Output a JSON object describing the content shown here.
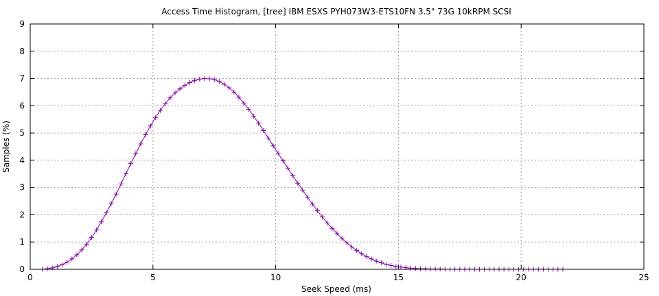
{
  "chart_data": {
    "type": "line",
    "title": "Access Time Histogram, [tree] IBM ESXS PYH073W3-ETS10FN 3.5\" 73G 10kRPM SCSI",
    "xlabel": "Seek Speed (ms)",
    "ylabel": "Samples (%)",
    "xlim": [
      0,
      25
    ],
    "ylim": [
      0,
      9
    ],
    "xticks": [
      0,
      5,
      10,
      15,
      20,
      25
    ],
    "yticks": [
      0,
      1,
      2,
      3,
      4,
      5,
      6,
      7,
      8,
      9
    ],
    "grid": true,
    "marker": "plus",
    "color": "#8b00b6",
    "series": [
      {
        "x": [
          0.5,
          0.7,
          0.9,
          1.1,
          1.3,
          1.5,
          1.7,
          1.9,
          2.1,
          2.3,
          2.5,
          2.7,
          2.9,
          3.1,
          3.3,
          3.5,
          3.7,
          3.9,
          4.1,
          4.3,
          4.5,
          4.7,
          4.9,
          5.1,
          5.3,
          5.5,
          5.7,
          5.9,
          6.1,
          6.3,
          6.5,
          6.7,
          6.9,
          7.1,
          7.3,
          7.5,
          7.7,
          7.9,
          8.1,
          8.3,
          8.5,
          8.7,
          8.9,
          9.1,
          9.3,
          9.5,
          9.7,
          9.9,
          10.1,
          10.3,
          10.5,
          10.7,
          10.9,
          11.1,
          11.3,
          11.5,
          11.7,
          11.9,
          12.1,
          12.3,
          12.5,
          12.7,
          12.9,
          13.1,
          13.3,
          13.5,
          13.7,
          13.9,
          14.1,
          14.3,
          14.5,
          14.7,
          14.9,
          15.1,
          15.3,
          15.5,
          15.7,
          15.9,
          16.1,
          16.3,
          16.5,
          16.7,
          16.9,
          17.1,
          17.3,
          17.5,
          17.7,
          17.9,
          18.1,
          18.3,
          18.5,
          18.7,
          18.9,
          19.1,
          19.3,
          19.5,
          19.7,
          19.9,
          20.1,
          20.3,
          20.5,
          20.7,
          20.9,
          21.1,
          21.3,
          21.5,
          21.7
        ],
        "y": [
          0.0,
          0.02,
          0.05,
          0.1,
          0.17,
          0.26,
          0.38,
          0.53,
          0.71,
          0.92,
          1.17,
          1.44,
          1.74,
          2.07,
          2.41,
          2.76,
          3.13,
          3.51,
          3.88,
          4.24,
          4.6,
          4.94,
          5.26,
          5.56,
          5.83,
          6.07,
          6.29,
          6.47,
          6.62,
          6.75,
          6.85,
          6.93,
          6.98,
          7.0,
          6.99,
          6.96,
          6.89,
          6.79,
          6.66,
          6.5,
          6.31,
          6.1,
          5.87,
          5.62,
          5.36,
          5.09,
          4.81,
          4.53,
          4.25,
          3.98,
          3.7,
          3.43,
          3.16,
          2.9,
          2.64,
          2.39,
          2.15,
          1.92,
          1.7,
          1.5,
          1.31,
          1.13,
          0.97,
          0.82,
          0.69,
          0.57,
          0.47,
          0.38,
          0.3,
          0.24,
          0.18,
          0.14,
          0.1,
          0.08,
          0.06,
          0.04,
          0.03,
          0.02,
          0.02,
          0.01,
          0.01,
          0.01,
          0.0,
          0.0,
          0.0,
          0.0,
          0.0,
          0.0,
          0.0,
          0.0,
          0.0,
          0.0,
          0.0,
          0.0,
          0.0,
          0.0,
          0.0,
          0.0,
          0.0,
          0.0,
          0.0,
          0.0,
          0.0,
          0.0,
          0.0,
          0.0,
          0.0
        ]
      }
    ]
  }
}
